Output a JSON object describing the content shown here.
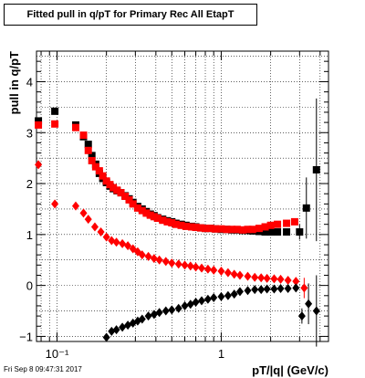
{
  "title": "Fitted pull in q/pT for Primary Rec All EtapT",
  "footer": "Fri Sep  8 09:47:31 2017",
  "colors": {
    "series_black": "#000000",
    "series_red": "#ff0000",
    "grid": "#000000",
    "frame": "#000000"
  },
  "chart_data": {
    "type": "scatter",
    "title": "Fitted pull in q/pT for Primary Rec All EtapT",
    "xlabel": "pT/|q| (GeV/c)",
    "ylabel": "pull in q/pT",
    "xscale": "log",
    "xlim": [
      0.075,
      4.5
    ],
    "ylim": [
      -1.1,
      4.6
    ],
    "grid": true,
    "x_ticks": [
      {
        "value": 0.1,
        "label": "10⁻¹"
      },
      {
        "value": 1,
        "label": "1"
      }
    ],
    "y_ticks": [
      {
        "value": -1,
        "label": "−1"
      },
      {
        "value": 0,
        "label": "0"
      },
      {
        "value": 1,
        "label": "1"
      },
      {
        "value": 2,
        "label": "2"
      },
      {
        "value": 3,
        "label": "3"
      },
      {
        "value": 4,
        "label": "4"
      }
    ],
    "series": [
      {
        "color": "#000000",
        "marker": "square",
        "points": [
          [
            0.077,
            3.23
          ],
          [
            0.097,
            3.42
          ],
          [
            0.13,
            3.15
          ],
          [
            0.145,
            2.92
          ],
          [
            0.155,
            2.77
          ],
          [
            0.163,
            2.55
          ],
          [
            0.172,
            2.38
          ],
          [
            0.181,
            2.2
          ],
          [
            0.19,
            2.1
          ],
          [
            0.2,
            2.02
          ],
          [
            0.21,
            1.95
          ],
          [
            0.22,
            1.9
          ],
          [
            0.232,
            1.86
          ],
          [
            0.245,
            1.82
          ],
          [
            0.26,
            1.76
          ],
          [
            0.275,
            1.7
          ],
          [
            0.29,
            1.63
          ],
          [
            0.31,
            1.55
          ],
          [
            0.33,
            1.5
          ],
          [
            0.35,
            1.45
          ],
          [
            0.37,
            1.4
          ],
          [
            0.39,
            1.37
          ],
          [
            0.41,
            1.33
          ],
          [
            0.44,
            1.3
          ],
          [
            0.47,
            1.27
          ],
          [
            0.5,
            1.25
          ],
          [
            0.53,
            1.22
          ],
          [
            0.57,
            1.2
          ],
          [
            0.61,
            1.18
          ],
          [
            0.66,
            1.16
          ],
          [
            0.7,
            1.15
          ],
          [
            0.75,
            1.13
          ],
          [
            0.8,
            1.12
          ],
          [
            0.86,
            1.12
          ],
          [
            0.92,
            1.11
          ],
          [
            1.0,
            1.1
          ],
          [
            1.08,
            1.1
          ],
          [
            1.16,
            1.09
          ],
          [
            1.25,
            1.09
          ],
          [
            1.35,
            1.08
          ],
          [
            1.45,
            1.08
          ],
          [
            1.55,
            1.07
          ],
          [
            1.7,
            1.06
          ],
          [
            1.85,
            1.05
          ],
          [
            2.0,
            1.05
          ],
          [
            2.2,
            1.05
          ],
          [
            2.5,
            1.05
          ],
          [
            3.0,
            1.05
          ],
          [
            3.3,
            1.52
          ],
          [
            3.8,
            2.27
          ]
        ],
        "errors": [
          null,
          null,
          null,
          null,
          null,
          null,
          null,
          null,
          null,
          null,
          null,
          null,
          null,
          null,
          null,
          null,
          null,
          null,
          null,
          null,
          null,
          null,
          null,
          null,
          null,
          null,
          null,
          null,
          null,
          null,
          null,
          null,
          null,
          null,
          null,
          null,
          null,
          null,
          null,
          null,
          null,
          null,
          null,
          null,
          null,
          null,
          null,
          0.15,
          0.6,
          1.4
        ]
      },
      {
        "color": "#ff0000",
        "marker": "square",
        "points": [
          [
            0.077,
            3.15
          ],
          [
            0.097,
            3.17
          ],
          [
            0.13,
            3.1
          ],
          [
            0.145,
            2.95
          ],
          [
            0.155,
            2.65
          ],
          [
            0.163,
            2.45
          ],
          [
            0.172,
            2.33
          ],
          [
            0.181,
            2.25
          ],
          [
            0.19,
            2.15
          ],
          [
            0.2,
            2.05
          ],
          [
            0.21,
            1.98
          ],
          [
            0.22,
            1.92
          ],
          [
            0.232,
            1.87
          ],
          [
            0.245,
            1.82
          ],
          [
            0.26,
            1.75
          ],
          [
            0.275,
            1.68
          ],
          [
            0.29,
            1.6
          ],
          [
            0.31,
            1.52
          ],
          [
            0.33,
            1.47
          ],
          [
            0.35,
            1.42
          ],
          [
            0.37,
            1.38
          ],
          [
            0.39,
            1.35
          ],
          [
            0.41,
            1.32
          ],
          [
            0.44,
            1.28
          ],
          [
            0.47,
            1.25
          ],
          [
            0.5,
            1.23
          ],
          [
            0.53,
            1.2
          ],
          [
            0.57,
            1.18
          ],
          [
            0.61,
            1.16
          ],
          [
            0.66,
            1.15
          ],
          [
            0.7,
            1.14
          ],
          [
            0.75,
            1.13
          ],
          [
            0.8,
            1.12
          ],
          [
            0.86,
            1.12
          ],
          [
            0.92,
            1.11
          ],
          [
            1.0,
            1.11
          ],
          [
            1.08,
            1.1
          ],
          [
            1.16,
            1.1
          ],
          [
            1.25,
            1.1
          ],
          [
            1.35,
            1.09
          ],
          [
            1.45,
            1.1
          ],
          [
            1.55,
            1.1
          ],
          [
            1.7,
            1.12
          ],
          [
            1.85,
            1.15
          ],
          [
            2.0,
            1.18
          ],
          [
            2.2,
            1.2
          ],
          [
            2.5,
            1.22
          ],
          [
            2.8,
            1.25
          ]
        ]
      },
      {
        "color": "#ff0000",
        "marker": "diamond",
        "points": [
          [
            0.077,
            2.37
          ],
          [
            0.097,
            1.6
          ],
          [
            0.13,
            1.56
          ],
          [
            0.145,
            1.42
          ],
          [
            0.155,
            1.3
          ],
          [
            0.17,
            1.15
          ],
          [
            0.185,
            1.05
          ],
          [
            0.2,
            0.95
          ],
          [
            0.215,
            0.88
          ],
          [
            0.23,
            0.85
          ],
          [
            0.25,
            0.82
          ],
          [
            0.27,
            0.78
          ],
          [
            0.29,
            0.72
          ],
          [
            0.31,
            0.66
          ],
          [
            0.33,
            0.6
          ],
          [
            0.36,
            0.57
          ],
          [
            0.39,
            0.53
          ],
          [
            0.42,
            0.5
          ],
          [
            0.46,
            0.47
          ],
          [
            0.5,
            0.44
          ],
          [
            0.55,
            0.42
          ],
          [
            0.6,
            0.4
          ],
          [
            0.65,
            0.38
          ],
          [
            0.7,
            0.36
          ],
          [
            0.76,
            0.34
          ],
          [
            0.83,
            0.32
          ],
          [
            0.9,
            0.3
          ],
          [
            1.0,
            0.28
          ],
          [
            1.1,
            0.25
          ],
          [
            1.2,
            0.22
          ],
          [
            1.3,
            0.2
          ],
          [
            1.45,
            0.18
          ],
          [
            1.6,
            0.16
          ],
          [
            1.75,
            0.15
          ],
          [
            1.9,
            0.14
          ],
          [
            2.1,
            0.13
          ],
          [
            2.3,
            0.12
          ],
          [
            2.55,
            0.1
          ],
          [
            2.85,
            0.08
          ],
          [
            3.2,
            -0.05
          ]
        ],
        "errors": [
          null,
          null,
          null,
          null,
          null,
          null,
          null,
          null,
          null,
          null,
          null,
          null,
          null,
          null,
          null,
          null,
          null,
          null,
          null,
          null,
          null,
          null,
          null,
          null,
          null,
          null,
          null,
          null,
          null,
          null,
          null,
          null,
          null,
          null,
          null,
          null,
          null,
          null,
          null,
          0.2
        ]
      },
      {
        "color": "#000000",
        "marker": "diamond",
        "points": [
          [
            0.2,
            -1.02
          ],
          [
            0.215,
            -0.9
          ],
          [
            0.23,
            -0.87
          ],
          [
            0.25,
            -0.82
          ],
          [
            0.27,
            -0.78
          ],
          [
            0.29,
            -0.74
          ],
          [
            0.31,
            -0.7
          ],
          [
            0.33,
            -0.66
          ],
          [
            0.36,
            -0.6
          ],
          [
            0.39,
            -0.57
          ],
          [
            0.42,
            -0.53
          ],
          [
            0.46,
            -0.5
          ],
          [
            0.5,
            -0.48
          ],
          [
            0.55,
            -0.45
          ],
          [
            0.6,
            -0.4
          ],
          [
            0.65,
            -0.37
          ],
          [
            0.7,
            -0.33
          ],
          [
            0.76,
            -0.3
          ],
          [
            0.83,
            -0.27
          ],
          [
            0.9,
            -0.24
          ],
          [
            1.0,
            -0.22
          ],
          [
            1.1,
            -0.2
          ],
          [
            1.2,
            -0.17
          ],
          [
            1.3,
            -0.12
          ],
          [
            1.45,
            -0.1
          ],
          [
            1.6,
            -0.08
          ],
          [
            1.75,
            -0.08
          ],
          [
            1.9,
            -0.07
          ],
          [
            2.1,
            -0.07
          ],
          [
            2.3,
            -0.06
          ],
          [
            2.55,
            -0.06
          ],
          [
            2.85,
            -0.05
          ],
          [
            3.1,
            -0.6
          ],
          [
            3.4,
            -0.36
          ],
          [
            3.8,
            -0.5
          ]
        ],
        "errors": [
          null,
          null,
          null,
          null,
          null,
          null,
          null,
          null,
          null,
          null,
          null,
          null,
          null,
          null,
          null,
          null,
          null,
          null,
          null,
          null,
          null,
          null,
          null,
          null,
          null,
          null,
          null,
          null,
          null,
          null,
          null,
          null,
          0.15,
          0.4,
          0.7
        ]
      }
    ]
  }
}
